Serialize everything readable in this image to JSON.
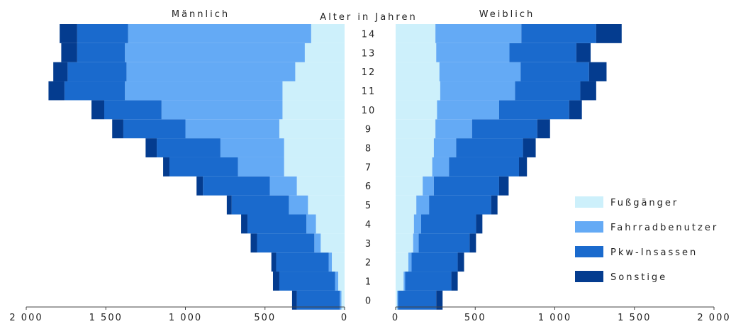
{
  "chart_data": {
    "type": "bar",
    "orientation": "horizontal-stacked-pyramid",
    "left_title": "Männlich",
    "right_title": "Weiblich",
    "center_title": "Alter in Jahren",
    "categories": [
      "0",
      "1",
      "2",
      "3",
      "4",
      "5",
      "6",
      "7",
      "8",
      "9",
      "10",
      "11",
      "12",
      "13",
      "14"
    ],
    "xlim": [
      0,
      2000
    ],
    "x_ticks_left": [
      "2 000",
      "1 500",
      "1 000",
      "500",
      "0"
    ],
    "x_ticks_right": [
      "0",
      "500",
      "1 000",
      "1 500",
      "2 000"
    ],
    "legend_position": "right",
    "series": [
      {
        "name": "Fußgänger",
        "color": "#cdf0fb",
        "male": [
          20,
          40,
          80,
          150,
          180,
          230,
          300,
          380,
          380,
          410,
          390,
          390,
          310,
          250,
          210
        ],
        "female": [
          10,
          50,
          80,
          110,
          115,
          130,
          170,
          230,
          240,
          250,
          260,
          280,
          275,
          255,
          250
        ]
      },
      {
        "name": "Fahrradbenutzer",
        "color": "#64aaf5",
        "male": [
          10,
          20,
          20,
          40,
          60,
          120,
          170,
          290,
          400,
          590,
          760,
          990,
          1060,
          1130,
          1150
        ],
        "female": [
          5,
          10,
          20,
          35,
          45,
          80,
          70,
          105,
          140,
          230,
          390,
          470,
          510,
          460,
          540
        ]
      },
      {
        "name": "Pkw-Insassen",
        "color": "#1a6acd",
        "male": [
          270,
          350,
          330,
          360,
          370,
          360,
          420,
          430,
          400,
          390,
          360,
          380,
          370,
          300,
          320
        ],
        "female": [
          240,
          290,
          290,
          320,
          345,
          390,
          410,
          440,
          420,
          410,
          440,
          410,
          430,
          420,
          470
        ]
      },
      {
        "name": "Sonstige",
        "color": "#043c8f",
        "male": [
          30,
          40,
          30,
          40,
          40,
          30,
          40,
          40,
          70,
          70,
          80,
          100,
          90,
          100,
          110
        ],
        "female": [
          40,
          40,
          40,
          40,
          40,
          40,
          60,
          50,
          80,
          80,
          80,
          100,
          110,
          90,
          160
        ]
      }
    ]
  }
}
